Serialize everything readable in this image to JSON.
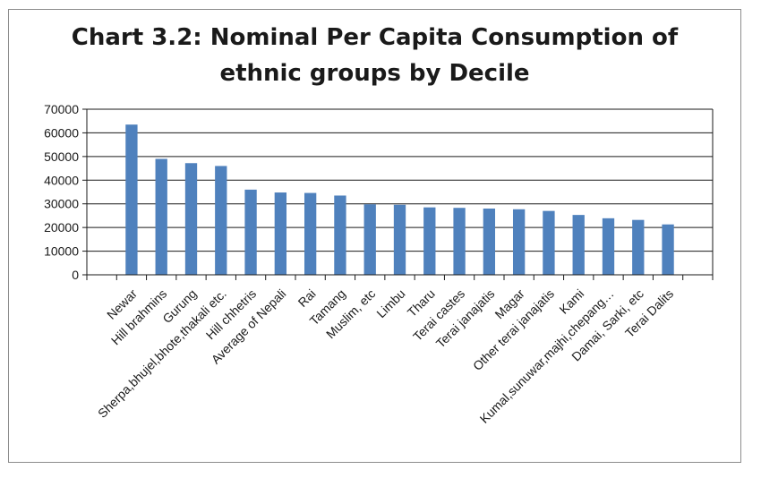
{
  "chart_data": {
    "type": "bar",
    "title_lines": [
      "Chart 3.2: Nominal Per Capita Consumption of",
      "ethnic groups by Decile"
    ],
    "xlabel": "",
    "ylabel": "",
    "ylim": [
      0,
      70000
    ],
    "yticks": [
      0,
      10000,
      20000,
      30000,
      40000,
      50000,
      60000,
      70000
    ],
    "grid": true,
    "legend": "none",
    "bar_color": "#4f81bd",
    "categories": [
      "Newar",
      "Hill brahmins",
      "Gurung",
      "Sherpa,bhujel,bhote,thakali etc.",
      "Hill chhetris",
      "Average of Nepali",
      "Rai",
      "Tamang",
      "Muslim, etc",
      "Limbu",
      "Tharu",
      "Terai castes",
      "Terai janajatis",
      "Magar",
      "Other terai janajatis",
      "Kami",
      "Kumal,sunuwar,majhi,chepang…",
      "Damai, Sarki, etc",
      "Terai Dalits"
    ],
    "values": [
      63500,
      49000,
      47200,
      46000,
      36000,
      34800,
      34600,
      33500,
      29800,
      29600,
      28500,
      28300,
      28000,
      27700,
      27000,
      25300,
      23900,
      23200,
      21300
    ]
  }
}
